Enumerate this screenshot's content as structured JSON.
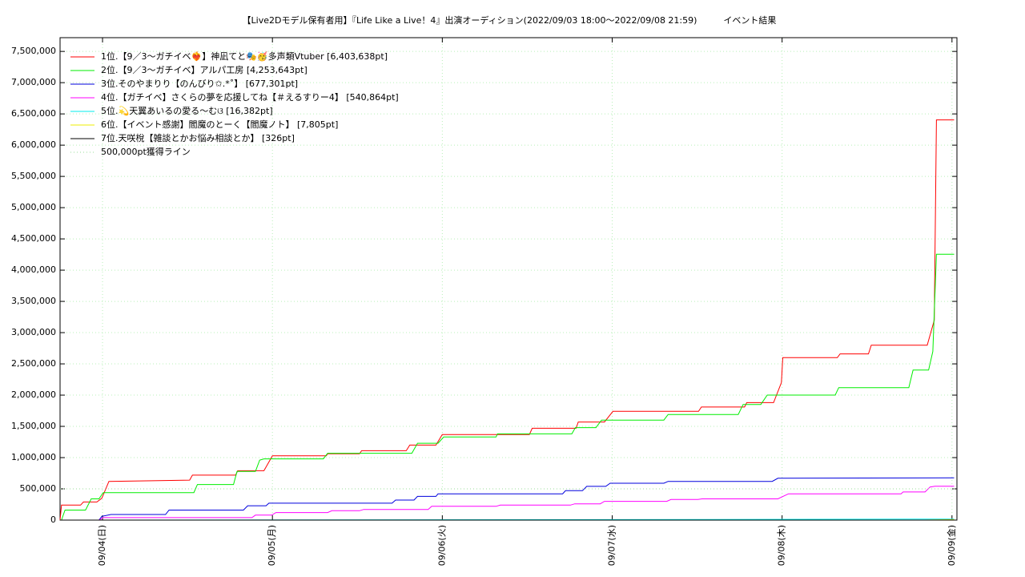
{
  "chart_data": {
    "type": "line",
    "title": "【Live2Dモデル保有者用】『Life Like a Live！4』出演オーディション(2022/09/03 18:00〜2022/09/08 21:59)　　　イベント結果",
    "xlim": [
      18,
      144.7
    ],
    "xticks": [
      {
        "value": 24,
        "label": "09/04(日)"
      },
      {
        "value": 48,
        "label": "09/05(月)"
      },
      {
        "value": 72,
        "label": "09/06(火)"
      },
      {
        "value": 96,
        "label": "09/07(水)"
      },
      {
        "value": 120,
        "label": "09/08(木)"
      },
      {
        "value": 144,
        "label": "09/09(金)"
      }
    ],
    "ylim": [
      0,
      7720000
    ],
    "yticks": [
      0,
      {
        "value": 500000,
        "label": "500,000"
      },
      {
        "value": 1000000,
        "label": "1,000,000"
      },
      {
        "value": 1500000,
        "label": "1,500,000"
      },
      {
        "value": 2000000,
        "label": "2,000,000"
      },
      {
        "value": 2500000,
        "label": "2,500,000"
      },
      {
        "value": 3000000,
        "label": "3,000,000"
      },
      {
        "value": 3500000,
        "label": "3,500,000"
      },
      {
        "value": 4000000,
        "label": "4,000,000"
      },
      {
        "value": 4500000,
        "label": "4,500,000"
      },
      {
        "value": 5000000,
        "label": "5,000,000"
      },
      {
        "value": 5500000,
        "label": "5,500,000"
      },
      {
        "value": 6000000,
        "label": "6,000,000"
      },
      {
        "value": 6500000,
        "label": "6,500,000"
      },
      {
        "value": 7000000,
        "label": "7,000,000"
      },
      {
        "value": 7500000,
        "label": "7,500,000"
      }
    ],
    "grid": true,
    "legend": "upper left",
    "series": [
      {
        "name": "1位.【9／3〜ガチイベ❤️‍🔥】神凪てと🎭🥳多声類Vtuber [6,403,638pt]",
        "color": "#ff0000",
        "x": [
          18.0,
          18.2,
          20.9,
          21.3,
          23.2,
          23.9,
          24.9,
          36.3,
          36.7,
          42.8,
          43.1,
          46.8,
          48.0,
          55.6,
          55.8,
          60.3,
          60.6,
          66.9,
          67.4,
          71.1,
          72.0,
          84.3,
          84.7,
          90.9,
          91.2,
          94.9,
          96.1,
          108.2,
          108.6,
          114.7,
          115.0,
          118.8,
          119.9,
          120.1,
          127.8,
          128.2,
          132.2,
          132.6,
          140.5,
          141.5,
          141.8,
          144.3
        ],
        "values": [
          0,
          240000,
          240000,
          290000,
          290000,
          350000,
          620000,
          640000,
          720000,
          720000,
          790000,
          790000,
          1030000,
          1030000,
          1060000,
          1060000,
          1110000,
          1110000,
          1200000,
          1200000,
          1370000,
          1370000,
          1470000,
          1470000,
          1570000,
          1570000,
          1740000,
          1740000,
          1810000,
          1810000,
          1880000,
          1880000,
          2200000,
          2600000,
          2600000,
          2660000,
          2660000,
          2800000,
          2800000,
          3200000,
          6403638,
          6403638
        ]
      },
      {
        "name": "2位.【9／3〜ガチイベ】アルパ工房 [4,253,643pt]",
        "color": "#00ee00",
        "x": [
          18.2,
          18.7,
          21.6,
          22.4,
          23.5,
          24.1,
          36.9,
          37.4,
          42.5,
          43.0,
          45.6,
          46.2,
          46.8,
          55.2,
          55.8,
          67.7,
          68.5,
          71.4,
          72.2,
          79.6,
          79.8,
          90.3,
          90.8,
          93.7,
          94.5,
          103.3,
          103.9,
          113.8,
          114.5,
          117.0,
          117.9,
          127.5,
          128.0,
          137.9,
          138.5,
          140.7,
          141.3,
          141.8,
          144.3
        ],
        "values": [
          0,
          160000,
          160000,
          340000,
          340000,
          440000,
          440000,
          570000,
          570000,
          780000,
          780000,
          960000,
          980000,
          980000,
          1070000,
          1070000,
          1230000,
          1230000,
          1330000,
          1330000,
          1380000,
          1380000,
          1480000,
          1480000,
          1600000,
          1600000,
          1690000,
          1690000,
          1850000,
          1850000,
          2000000,
          2000000,
          2120000,
          2120000,
          2400000,
          2400000,
          2700000,
          4253643,
          4253643
        ]
      },
      {
        "name": "3位.そのやまりり【のんびり✩.*˚】 [677,301pt]",
        "color": "#0000dd",
        "x": [
          18.0,
          23.5,
          23.9,
          25.2,
          32.9,
          33.4,
          43.9,
          44.5,
          47.1,
          47.5,
          64.9,
          65.4,
          68.0,
          68.5,
          71.1,
          71.4,
          89.0,
          89.4,
          91.8,
          92.4,
          95.1,
          95.7,
          103.3,
          103.9,
          118.6,
          119.4,
          144.3
        ],
        "values": [
          0,
          0,
          60000,
          90000,
          90000,
          160000,
          160000,
          230000,
          230000,
          270000,
          270000,
          320000,
          320000,
          380000,
          380000,
          420000,
          420000,
          470000,
          470000,
          540000,
          540000,
          590000,
          590000,
          620000,
          620000,
          670000,
          677301
        ]
      },
      {
        "name": "4位.【ガチイベ】さくらの夢を応援してね【＃えるすりー4】 [540,864pt]",
        "color": "#ff00ff",
        "x": [
          18.0,
          23.5,
          24.1,
          45.1,
          45.6,
          47.9,
          48.5,
          55.8,
          56.4,
          60.3,
          60.9,
          70.0,
          70.5,
          79.6,
          80.2,
          90.1,
          90.7,
          94.3,
          94.9,
          103.7,
          104.3,
          108.1,
          108.7,
          119.4,
          120.9,
          136.8,
          137.1,
          140.2,
          140.9,
          141.6,
          144.3
        ],
        "values": [
          0,
          0,
          40000,
          40000,
          80000,
          80000,
          120000,
          120000,
          150000,
          150000,
          170000,
          170000,
          220000,
          220000,
          240000,
          240000,
          260000,
          260000,
          300000,
          300000,
          330000,
          330000,
          340000,
          340000,
          420000,
          420000,
          450000,
          450000,
          530000,
          540864,
          540864
        ]
      },
      {
        "name": "5位.💫天翼あいるの愛る〜むଓ [16,382pt]",
        "color": "#00eeee",
        "x": [
          18.0,
          96.0,
          144.3
        ],
        "values": [
          0,
          8000,
          16382
        ]
      },
      {
        "name": "6位.【イベント感謝】閻魔のとーく【閻魔ノト】 [7,805pt]",
        "color": "#eeee00",
        "x": [
          18.0,
          140.0,
          144.3
        ],
        "values": [
          0,
          0,
          7805
        ]
      },
      {
        "name": "7位.天咲梲【雑談とかお悩み相談とか】 [326pt]",
        "color": "#000000",
        "x": [
          18.0,
          144.3
        ],
        "values": [
          0,
          326
        ]
      },
      {
        "name": "500,000pt獲得ライン",
        "color": "#99dd99",
        "style": "dotted",
        "x": [
          18.0,
          144.7
        ],
        "values": [
          500000,
          500000
        ]
      }
    ]
  }
}
